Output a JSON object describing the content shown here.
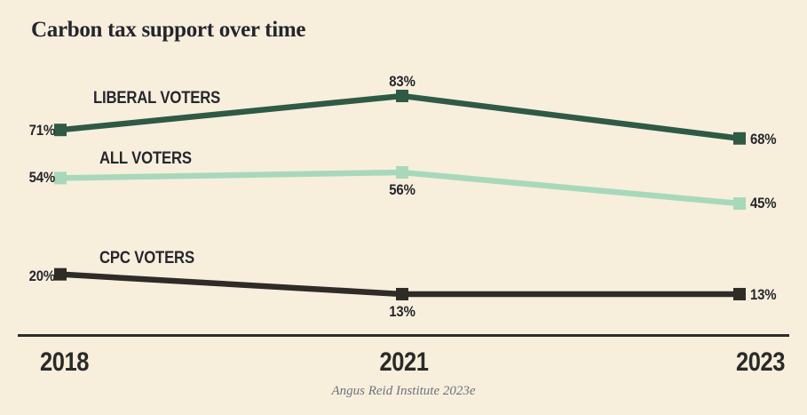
{
  "title": "Carbon tax support over time",
  "source": "Angus Reid Institute 2023e",
  "colors": {
    "background": "#f7efdc",
    "title_text": "#25252d",
    "label_text": "#26262c",
    "axis": "#2e2d2b",
    "source_text": "#6d717c",
    "liberal_green": "#2f5a44",
    "all_voters_green": "#a8d8ba",
    "cpc_black": "#2f2b27"
  },
  "chart_data": {
    "type": "line",
    "title": "Carbon tax support over time",
    "x": [
      2018,
      2021,
      2023
    ],
    "x_tick_labels": [
      "2018",
      "2021",
      "2023"
    ],
    "ylabel": "",
    "xlabel": "",
    "ylim": [
      0,
      100
    ],
    "grid": false,
    "legend_position": "inline labels above each line",
    "marker": "square",
    "series": [
      {
        "name": "LIBERAL VOTERS",
        "values": [
          71,
          83,
          68
        ],
        "labels": [
          "71%",
          "83%",
          "68%"
        ],
        "color": "#2f5a44"
      },
      {
        "name": "ALL VOTERS",
        "values": [
          54,
          56,
          45
        ],
        "labels": [
          "54%",
          "56%",
          "45%"
        ],
        "color": "#a8d8ba"
      },
      {
        "name": "CPC VOTERS",
        "values": [
          20,
          13,
          13
        ],
        "labels": [
          "20%",
          "13%",
          "13%"
        ],
        "color": "#2f2b27"
      }
    ]
  }
}
